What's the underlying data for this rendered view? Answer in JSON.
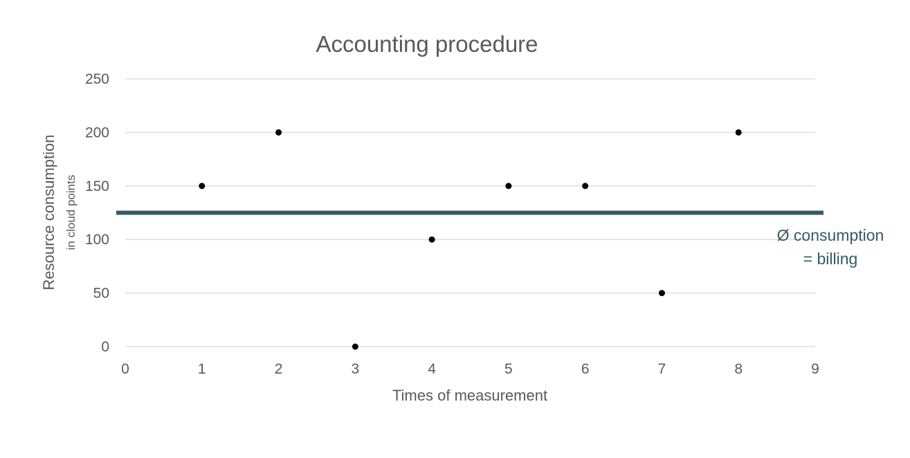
{
  "chart_data": {
    "type": "scatter",
    "title": "Accounting procedure",
    "xlabel": "Times of measurement",
    "ylabel": "Resource consumption",
    "ylabel_sub": "in cloud points",
    "xlim": [
      0,
      9
    ],
    "ylim": [
      0,
      250
    ],
    "xticks": [
      "0",
      "1",
      "2",
      "3",
      "4",
      "5",
      "6",
      "7",
      "8",
      "9"
    ],
    "yticks": [
      "0",
      "50",
      "100",
      "150",
      "200",
      "250"
    ],
    "grid": "horizontal",
    "points": [
      {
        "x": 1,
        "y": 150
      },
      {
        "x": 2,
        "y": 200
      },
      {
        "x": 3,
        "y": 0
      },
      {
        "x": 4,
        "y": 100
      },
      {
        "x": 5,
        "y": 150
      },
      {
        "x": 6,
        "y": 150
      },
      {
        "x": 7,
        "y": 50
      },
      {
        "x": 8,
        "y": 200
      }
    ],
    "average_line": {
      "y": 125,
      "label_line1": "Ø consumption",
      "label_line2": "= billing",
      "color": "#355a63"
    },
    "point_color": "#000000"
  }
}
